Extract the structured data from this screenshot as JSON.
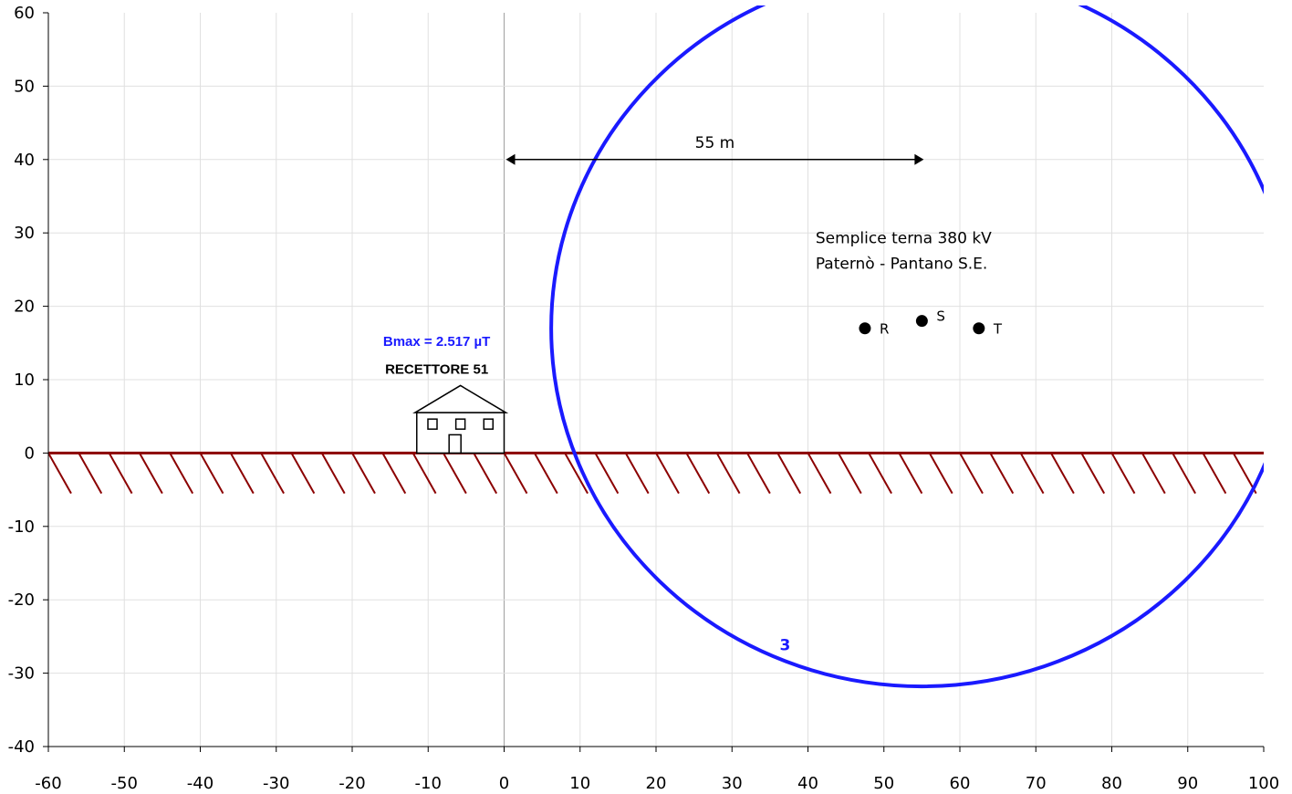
{
  "chart_data": {
    "type": "scatter",
    "xlim": [
      -60,
      100
    ],
    "ylim": [
      -40,
      60
    ],
    "x_ticks": [
      "-60",
      "-50",
      "-40",
      "-30",
      "-20",
      "-10",
      "0",
      "10",
      "20",
      "30",
      "40",
      "50",
      "60",
      "70",
      "80",
      "90",
      "100"
    ],
    "y_ticks": [
      "60",
      "50",
      "40",
      "30",
      "20",
      "10",
      "0",
      "-10",
      "-20",
      "-30",
      "-40"
    ],
    "grid": true,
    "ground_level": 0,
    "contour": {
      "level_label": "3",
      "center_x": 55,
      "center_y": 17,
      "radius": 48.8,
      "color": "#1a1aff"
    },
    "conductors": [
      {
        "label": "R",
        "x": 47.5,
        "y": 17
      },
      {
        "label": "S",
        "x": 55,
        "y": 18
      },
      {
        "label": "T",
        "x": 62.5,
        "y": 17
      }
    ],
    "distance_annotation": {
      "label": "55 m",
      "x_start": 0,
      "x_end": 55,
      "y": 40
    },
    "line_title": [
      "Semplice terna 380 kV",
      "Paternò - Pantano S.E."
    ],
    "receptor": {
      "bmax_label": "Bmax = 2.517 µT",
      "name": "RECETTORE 51",
      "x_left": -11.5,
      "x_right": 0,
      "wall_top": 5.5,
      "roof_top": 9.2
    },
    "colors": {
      "contour": "#1a1aff",
      "ground": "#8b0000",
      "bmax": "#1a1aff",
      "grid": "#e0e0e0",
      "axis_zero": "#a0a0a0"
    }
  }
}
